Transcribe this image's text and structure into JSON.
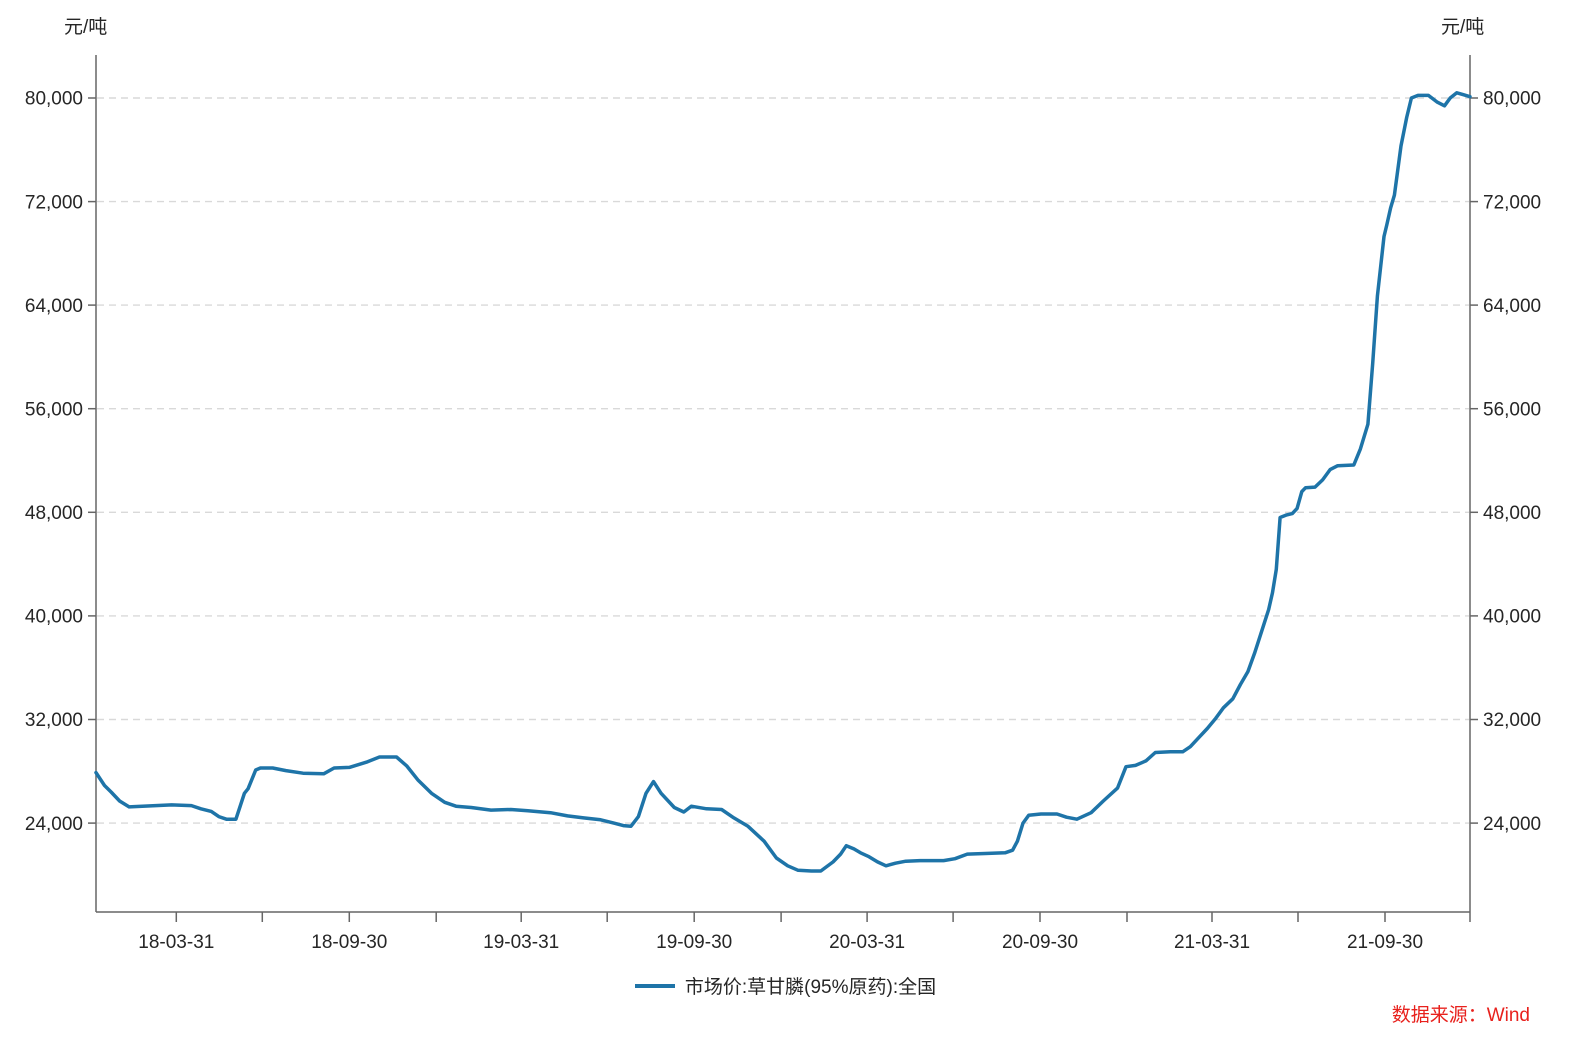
{
  "units": {
    "left": "元/吨",
    "right": "元/吨"
  },
  "legend": {
    "items": [
      {
        "label": "市场价:草甘膦(95%原药):全国",
        "color": "#1e74a8"
      }
    ]
  },
  "source": {
    "label": "数据来源：Wind",
    "color": "#e8211d"
  },
  "chart_data": {
    "type": "line",
    "title": "",
    "ylabel": "元/吨",
    "legend_position": "bottom-center",
    "grid": "horizontal-dashed",
    "style": {
      "axis_color": "#666666",
      "grid_color": "#d9d9d9",
      "text_color": "#262626"
    },
    "y_axis": {
      "min": 17130,
      "max": 83320,
      "gridline_values": [
        24000,
        32000,
        40000,
        48000,
        56000,
        64000,
        72000,
        80000
      ],
      "tick_labels": [
        "24,000",
        "32,000",
        "40,000",
        "48,000",
        "56,000",
        "64,000",
        "72,000",
        "80,000"
      ],
      "sides": "both"
    },
    "x_axis": {
      "start": "2018-01-05",
      "end": "2021-12-29",
      "ticks": [
        {
          "date": "2018-03-31",
          "label": "18-03-31"
        },
        {
          "date": "2018-06-30",
          "label": ""
        },
        {
          "date": "2018-09-30",
          "label": "18-09-30"
        },
        {
          "date": "2018-12-31",
          "label": ""
        },
        {
          "date": "2019-03-31",
          "label": "19-03-31"
        },
        {
          "date": "2019-06-30",
          "label": ""
        },
        {
          "date": "2019-09-30",
          "label": "19-09-30"
        },
        {
          "date": "2019-12-31",
          "label": ""
        },
        {
          "date": "2020-03-31",
          "label": "20-03-31"
        },
        {
          "date": "2020-06-30",
          "label": ""
        },
        {
          "date": "2020-09-30",
          "label": "20-09-30"
        },
        {
          "date": "2020-12-31",
          "label": ""
        },
        {
          "date": "2021-03-31",
          "label": "21-03-31"
        },
        {
          "date": "2021-06-30",
          "label": ""
        },
        {
          "date": "2021-09-30",
          "label": "21-09-30"
        },
        {
          "date": "2021-12-31",
          "label": ""
        }
      ]
    },
    "series": [
      {
        "name": "市场价:草甘膦(95%原药):全国",
        "color": "#1e74a8",
        "unit": "元/吨",
        "points": [
          [
            "2018-01-05",
            27900
          ],
          [
            "2018-01-14",
            26900
          ],
          [
            "2018-01-21",
            26400
          ],
          [
            "2018-01-30",
            25700
          ],
          [
            "2018-02-09",
            25250
          ],
          [
            "2018-02-23",
            25300
          ],
          [
            "2018-03-26",
            25400
          ],
          [
            "2018-04-16",
            25350
          ],
          [
            "2018-04-26",
            25100
          ],
          [
            "2018-05-07",
            24900
          ],
          [
            "2018-05-15",
            24500
          ],
          [
            "2018-05-23",
            24300
          ],
          [
            "2018-06-02",
            24300
          ],
          [
            "2018-06-11",
            26300
          ],
          [
            "2018-06-15",
            26650
          ],
          [
            "2018-06-23",
            28100
          ],
          [
            "2018-06-28",
            28250
          ],
          [
            "2018-07-11",
            28250
          ],
          [
            "2018-07-25",
            28050
          ],
          [
            "2018-08-12",
            27850
          ],
          [
            "2018-09-03",
            27800
          ],
          [
            "2018-09-14",
            28250
          ],
          [
            "2018-09-30",
            28300
          ],
          [
            "2018-10-18",
            28700
          ],
          [
            "2018-11-01",
            29100
          ],
          [
            "2018-11-19",
            29100
          ],
          [
            "2018-11-30",
            28400
          ],
          [
            "2018-12-12",
            27300
          ],
          [
            "2018-12-26",
            26300
          ],
          [
            "2019-01-09",
            25600
          ],
          [
            "2019-01-21",
            25300
          ],
          [
            "2019-02-06",
            25200
          ],
          [
            "2019-02-27",
            25000
          ],
          [
            "2019-03-20",
            25050
          ],
          [
            "2019-04-07",
            24950
          ],
          [
            "2019-05-01",
            24800
          ],
          [
            "2019-05-19",
            24550
          ],
          [
            "2019-06-05",
            24400
          ],
          [
            "2019-06-23",
            24250
          ],
          [
            "2019-07-07",
            24000
          ],
          [
            "2019-07-17",
            23800
          ],
          [
            "2019-07-25",
            23750
          ],
          [
            "2019-08-02",
            24500
          ],
          [
            "2019-08-10",
            26300
          ],
          [
            "2019-08-18",
            27200
          ],
          [
            "2019-08-26",
            26300
          ],
          [
            "2019-09-09",
            25200
          ],
          [
            "2019-09-19",
            24850
          ],
          [
            "2019-09-27",
            25300
          ],
          [
            "2019-10-13",
            25100
          ],
          [
            "2019-10-29",
            25050
          ],
          [
            "2019-11-11",
            24400
          ],
          [
            "2019-11-26",
            23750
          ],
          [
            "2019-12-13",
            22600
          ],
          [
            "2019-12-26",
            21300
          ],
          [
            "2020-01-07",
            20700
          ],
          [
            "2020-01-18",
            20350
          ],
          [
            "2020-02-01",
            20300
          ],
          [
            "2020-02-11",
            20300
          ],
          [
            "2020-02-24",
            21000
          ],
          [
            "2020-03-03",
            21600
          ],
          [
            "2020-03-09",
            22250
          ],
          [
            "2020-03-17",
            22000
          ],
          [
            "2020-03-24",
            21700
          ],
          [
            "2020-04-02",
            21400
          ],
          [
            "2020-04-11",
            21000
          ],
          [
            "2020-04-20",
            20700
          ],
          [
            "2020-04-30",
            20900
          ],
          [
            "2020-05-11",
            21050
          ],
          [
            "2020-05-26",
            21100
          ],
          [
            "2020-06-20",
            21100
          ],
          [
            "2020-07-02",
            21250
          ],
          [
            "2020-07-15",
            21600
          ],
          [
            "2020-08-03",
            21650
          ],
          [
            "2020-08-24",
            21700
          ],
          [
            "2020-09-01",
            21900
          ],
          [
            "2020-09-06",
            22600
          ],
          [
            "2020-09-12",
            24000
          ],
          [
            "2020-09-18",
            24600
          ],
          [
            "2020-10-01",
            24700
          ],
          [
            "2020-10-18",
            24700
          ],
          [
            "2020-10-28",
            24450
          ],
          [
            "2020-11-08",
            24300
          ],
          [
            "2020-11-23",
            24800
          ],
          [
            "2020-12-06",
            25700
          ],
          [
            "2020-12-21",
            26700
          ],
          [
            "2020-12-30",
            28350
          ],
          [
            "2021-01-09",
            28450
          ],
          [
            "2021-01-20",
            28800
          ],
          [
            "2021-01-30",
            29450
          ],
          [
            "2021-02-15",
            29500
          ],
          [
            "2021-02-28",
            29500
          ],
          [
            "2021-03-08",
            29900
          ],
          [
            "2021-03-17",
            30600
          ],
          [
            "2021-03-26",
            31300
          ],
          [
            "2021-04-04",
            32100
          ],
          [
            "2021-04-12",
            32900
          ],
          [
            "2021-04-22",
            33600
          ],
          [
            "2021-04-30",
            34700
          ],
          [
            "2021-05-08",
            35700
          ],
          [
            "2021-05-15",
            37100
          ],
          [
            "2021-05-22",
            38700
          ],
          [
            "2021-05-30",
            40500
          ],
          [
            "2021-06-03",
            41800
          ],
          [
            "2021-06-07",
            43600
          ],
          [
            "2021-06-11",
            47600
          ],
          [
            "2021-06-18",
            47800
          ],
          [
            "2021-06-24",
            47900
          ],
          [
            "2021-06-29",
            48300
          ],
          [
            "2021-07-04",
            49600
          ],
          [
            "2021-07-08",
            49900
          ],
          [
            "2021-07-18",
            49950
          ],
          [
            "2021-07-26",
            50500
          ],
          [
            "2021-08-03",
            51300
          ],
          [
            "2021-08-11",
            51600
          ],
          [
            "2021-08-28",
            51650
          ],
          [
            "2021-09-04",
            52900
          ],
          [
            "2021-09-12",
            54800
          ],
          [
            "2021-09-17",
            59500
          ],
          [
            "2021-09-22",
            64700
          ],
          [
            "2021-09-29",
            69300
          ],
          [
            "2021-10-02",
            70200
          ],
          [
            "2021-10-06",
            71500
          ],
          [
            "2021-10-10",
            72500
          ],
          [
            "2021-10-17",
            76300
          ],
          [
            "2021-10-23",
            78500
          ],
          [
            "2021-10-28",
            80000
          ],
          [
            "2021-11-04",
            80200
          ],
          [
            "2021-11-15",
            80200
          ],
          [
            "2021-11-24",
            79700
          ],
          [
            "2021-12-02",
            79400
          ],
          [
            "2021-12-08",
            80000
          ],
          [
            "2021-12-15",
            80400
          ],
          [
            "2021-12-22",
            80250
          ],
          [
            "2021-12-29",
            80100
          ]
        ]
      }
    ]
  }
}
